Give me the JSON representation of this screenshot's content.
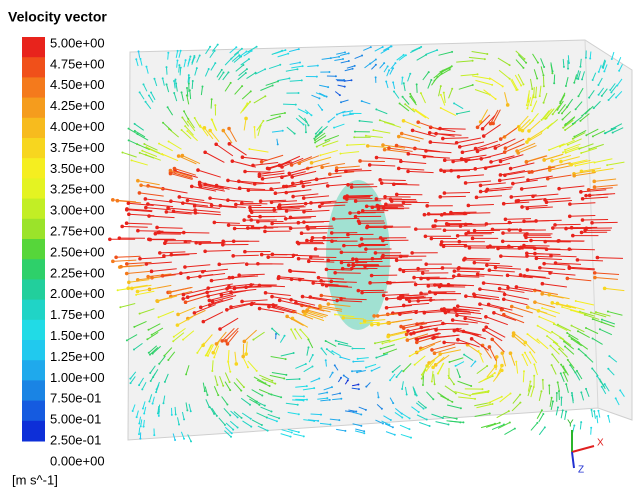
{
  "legend": {
    "title": "Velocity vector",
    "labels": [
      "5.00e+00",
      "4.75e+00",
      "4.50e+00",
      "4.25e+00",
      "4.00e+00",
      "3.75e+00",
      "3.50e+00",
      "3.25e+00",
      "3.00e+00",
      "2.75e+00",
      "2.50e+00",
      "2.25e+00",
      "2.00e+00",
      "1.75e+00",
      "1.50e+00",
      "1.25e+00",
      "1.00e+00",
      "7.50e-01",
      "5.00e-01",
      "2.50e-01",
      "0.00e+00"
    ],
    "colors": [
      "#e8231c",
      "#f0501a",
      "#f47a1c",
      "#f59c1d",
      "#f7bb1e",
      "#f7d61f",
      "#f5ee20",
      "#e4f322",
      "#c2ee25",
      "#9be32a",
      "#56d63a",
      "#2ed06a",
      "#22cf9c",
      "#20d4c6",
      "#21dbe6",
      "#21c9ee",
      "#1fa9ec",
      "#1a84e4",
      "#155be0",
      "#0d2fd8"
    ],
    "unit": "[m s^-1]"
  },
  "axes": {
    "y": "Y",
    "x": "X",
    "z": "Z"
  }
}
